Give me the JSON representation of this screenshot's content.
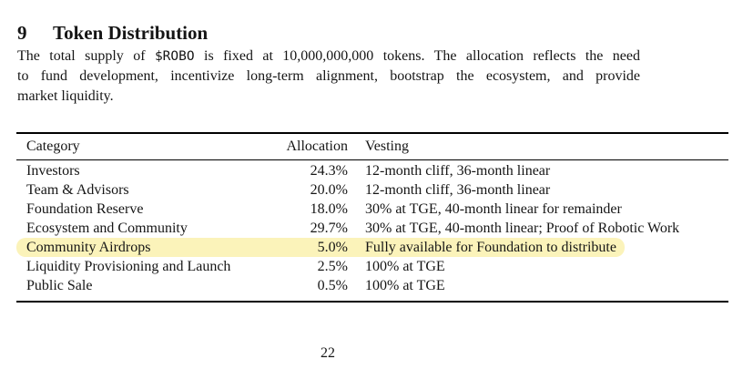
{
  "colors": {
    "text": "#151515",
    "background": "#ffffff",
    "rule": "#000000",
    "highlight": "#FBF3BA"
  },
  "section": {
    "number": "9",
    "title": "Token Distribution"
  },
  "paragraph": {
    "line1_part1": "The total supply of ",
    "line1_ticker": "$ROBO",
    "line1_part2": " is fixed at 10,000,000,000 tokens. The allocation reflects the need",
    "line2": "to fund development, incentivize long-term alignment, bootstrap the ecosystem, and provide",
    "line3": "market liquidity."
  },
  "table": {
    "headers": {
      "category": "Category",
      "allocation": "Allocation",
      "vesting": "Vesting"
    },
    "rows": [
      {
        "category": "Investors",
        "allocation": "24.3%",
        "vesting": "12-month cliff, 36-month linear",
        "highlighted": false
      },
      {
        "category": "Team & Advisors",
        "allocation": "20.0%",
        "vesting": "12-month cliff, 36-month linear",
        "highlighted": false
      },
      {
        "category": "Foundation Reserve",
        "allocation": "18.0%",
        "vesting": "30% at TGE, 40-month linear for remainder",
        "highlighted": false
      },
      {
        "category": "Ecosystem and Community",
        "allocation": "29.7%",
        "vesting": "30% at TGE, 40-month linear; Proof of Robotic Work",
        "highlighted": false
      },
      {
        "category": "Community Airdrops",
        "allocation": "5.0%",
        "vesting": "Fully available for Foundation to distribute",
        "highlighted": true
      },
      {
        "category": "Liquidity Provisioning and Launch",
        "allocation": "2.5%",
        "vesting": "100% at TGE",
        "highlighted": false
      },
      {
        "category": "Public Sale",
        "allocation": "0.5%",
        "vesting": "100% at TGE",
        "highlighted": false
      }
    ]
  },
  "footer": {
    "page_number": "22"
  }
}
